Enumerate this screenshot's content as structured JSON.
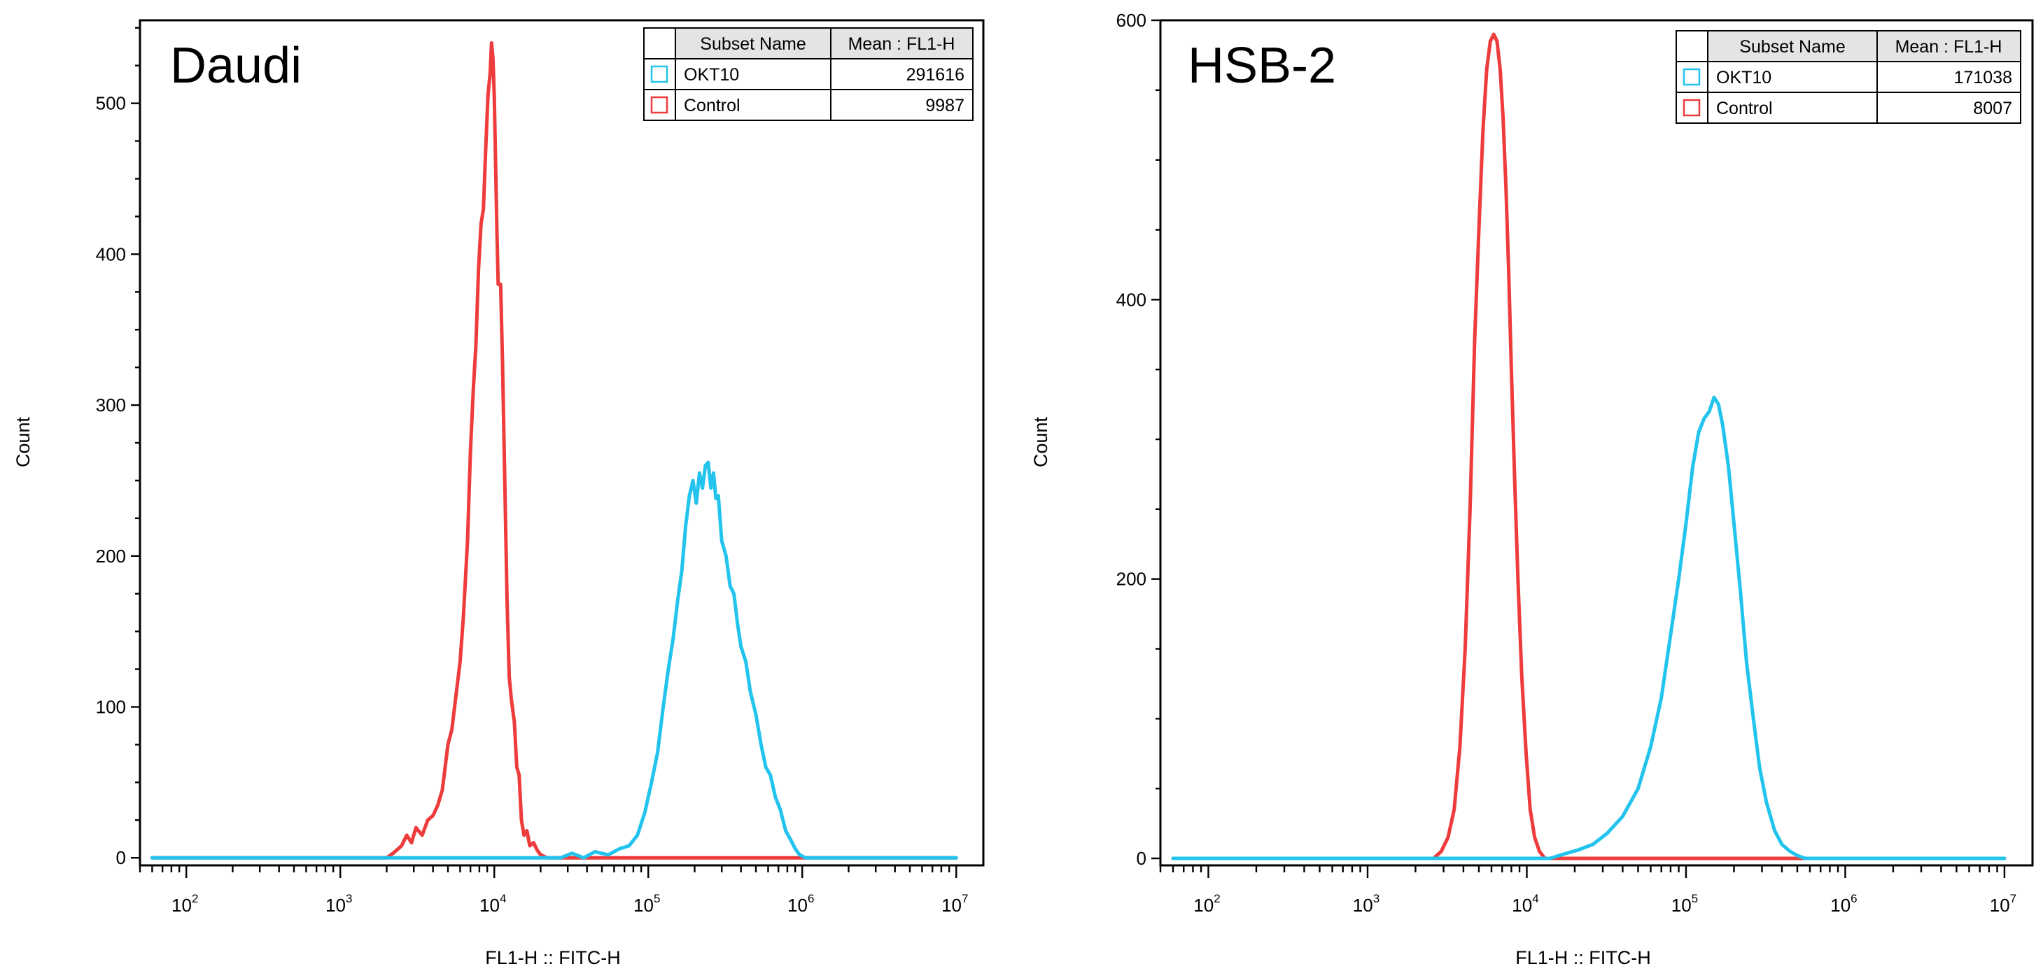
{
  "chart_data": [
    {
      "type": "line",
      "panel_title": "Daudi",
      "xlabel": "FL1-H :: FITC-H",
      "ylabel": "Count",
      "x_scale": "log",
      "xlim": [
        50,
        15000000
      ],
      "ylim": [
        -5,
        555
      ],
      "x_ticks": [
        100,
        1000,
        10000,
        100000,
        1000000,
        10000000
      ],
      "x_tick_labels": [
        [
          "10",
          "2"
        ],
        [
          "10",
          "3"
        ],
        [
          "10",
          "4"
        ],
        [
          "10",
          "5"
        ],
        [
          "10",
          "6"
        ],
        [
          "10",
          "7"
        ]
      ],
      "y_ticks": [
        0,
        100,
        200,
        300,
        400,
        500
      ],
      "y_tick_labels": [
        "0",
        "100",
        "200",
        "300",
        "400",
        "500"
      ],
      "legend": {
        "headers": [
          "Subset Name",
          "Mean : FL1-H"
        ],
        "rows": [
          {
            "name": "OKT10",
            "mean": "291616",
            "color": "#22c4ee"
          },
          {
            "name": "Control",
            "mean": "9987",
            "color": "#ee3b3b"
          }
        ]
      },
      "series": [
        {
          "name": "Control",
          "color": "#ee3b3b",
          "points": [
            [
              60,
              0
            ],
            [
              2000,
              0
            ],
            [
              2200,
              3
            ],
            [
              2500,
              8
            ],
            [
              2700,
              15
            ],
            [
              2900,
              10
            ],
            [
              3100,
              20
            ],
            [
              3400,
              15
            ],
            [
              3700,
              25
            ],
            [
              4000,
              28
            ],
            [
              4300,
              35
            ],
            [
              4600,
              45
            ],
            [
              5000,
              75
            ],
            [
              5300,
              85
            ],
            [
              5600,
              105
            ],
            [
              6000,
              130
            ],
            [
              6300,
              160
            ],
            [
              6700,
              210
            ],
            [
              7000,
              270
            ],
            [
              7300,
              310
            ],
            [
              7600,
              340
            ],
            [
              7900,
              390
            ],
            [
              8200,
              420
            ],
            [
              8500,
              430
            ],
            [
              8800,
              470
            ],
            [
              9100,
              505
            ],
            [
              9400,
              520
            ],
            [
              9600,
              540
            ],
            [
              9800,
              530
            ],
            [
              10000,
              505
            ],
            [
              10200,
              460
            ],
            [
              10400,
              415
            ],
            [
              10600,
              380
            ],
            [
              11000,
              380
            ],
            [
              11300,
              330
            ],
            [
              11700,
              250
            ],
            [
              12100,
              170
            ],
            [
              12500,
              120
            ],
            [
              12900,
              105
            ],
            [
              13500,
              90
            ],
            [
              14000,
              60
            ],
            [
              14500,
              55
            ],
            [
              15000,
              25
            ],
            [
              15600,
              15
            ],
            [
              16300,
              18
            ],
            [
              17000,
              8
            ],
            [
              18000,
              10
            ],
            [
              19000,
              5
            ],
            [
              20000,
              2
            ],
            [
              22000,
              0
            ],
            [
              10000000,
              0
            ]
          ]
        },
        {
          "name": "OKT10",
          "color": "#22c4ee",
          "points": [
            [
              60,
              0
            ],
            [
              27000,
              0
            ],
            [
              32000,
              3
            ],
            [
              38000,
              0
            ],
            [
              45000,
              4
            ],
            [
              55000,
              2
            ],
            [
              65000,
              6
            ],
            [
              75000,
              8
            ],
            [
              85000,
              15
            ],
            [
              95000,
              30
            ],
            [
              105000,
              50
            ],
            [
              115000,
              70
            ],
            [
              125000,
              100
            ],
            [
              135000,
              125
            ],
            [
              145000,
              145
            ],
            [
              155000,
              170
            ],
            [
              165000,
              190
            ],
            [
              175000,
              220
            ],
            [
              185000,
              240
            ],
            [
              195000,
              250
            ],
            [
              205000,
              235
            ],
            [
              215000,
              255
            ],
            [
              225000,
              245
            ],
            [
              235000,
              260
            ],
            [
              245000,
              262
            ],
            [
              255000,
              245
            ],
            [
              265000,
              255
            ],
            [
              275000,
              238
            ],
            [
              285000,
              240
            ],
            [
              300000,
              210
            ],
            [
              320000,
              200
            ],
            [
              340000,
              180
            ],
            [
              360000,
              175
            ],
            [
              380000,
              155
            ],
            [
              400000,
              140
            ],
            [
              430000,
              130
            ],
            [
              460000,
              110
            ],
            [
              500000,
              95
            ],
            [
              540000,
              75
            ],
            [
              580000,
              60
            ],
            [
              620000,
              55
            ],
            [
              670000,
              40
            ],
            [
              720000,
              32
            ],
            [
              780000,
              18
            ],
            [
              840000,
              12
            ],
            [
              900000,
              6
            ],
            [
              960000,
              2
            ],
            [
              1050000,
              0
            ],
            [
              10000000,
              0
            ]
          ]
        }
      ]
    },
    {
      "type": "line",
      "panel_title": "HSB-2",
      "xlabel": "FL1-H :: FITC-H",
      "ylabel": "Count",
      "x_scale": "log",
      "xlim": [
        50,
        15000000
      ],
      "ylim": [
        -5,
        600
      ],
      "x_ticks": [
        100,
        1000,
        10000,
        100000,
        1000000,
        10000000
      ],
      "x_tick_labels": [
        [
          "10",
          "2"
        ],
        [
          "10",
          "3"
        ],
        [
          "10",
          "4"
        ],
        [
          "10",
          "5"
        ],
        [
          "10",
          "6"
        ],
        [
          "10",
          "7"
        ]
      ],
      "y_ticks": [
        0,
        200,
        400,
        600
      ],
      "y_tick_labels": [
        "0",
        "200",
        "400",
        "600"
      ],
      "legend": {
        "headers": [
          "Subset Name",
          "Mean : FL1-H"
        ],
        "rows": [
          {
            "name": "OKT10",
            "mean": "171038",
            "color": "#22c4ee"
          },
          {
            "name": "Control",
            "mean": "8007",
            "color": "#ee3b3b"
          }
        ]
      },
      "series": [
        {
          "name": "Control",
          "color": "#ee3b3b",
          "points": [
            [
              60,
              0
            ],
            [
              2600,
              0
            ],
            [
              2900,
              5
            ],
            [
              3200,
              15
            ],
            [
              3500,
              35
            ],
            [
              3800,
              80
            ],
            [
              4100,
              150
            ],
            [
              4400,
              250
            ],
            [
              4700,
              370
            ],
            [
              5000,
              450
            ],
            [
              5300,
              520
            ],
            [
              5600,
              565
            ],
            [
              5900,
              585
            ],
            [
              6200,
              590
            ],
            [
              6500,
              585
            ],
            [
              6800,
              565
            ],
            [
              7100,
              530
            ],
            [
              7400,
              480
            ],
            [
              7700,
              420
            ],
            [
              8000,
              350
            ],
            [
              8400,
              270
            ],
            [
              8800,
              200
            ],
            [
              9300,
              130
            ],
            [
              9900,
              75
            ],
            [
              10500,
              35
            ],
            [
              11200,
              15
            ],
            [
              12000,
              5
            ],
            [
              13000,
              0
            ],
            [
              10000000,
              0
            ]
          ]
        },
        {
          "name": "OKT10",
          "color": "#22c4ee",
          "points": [
            [
              60,
              0
            ],
            [
              14000,
              0
            ],
            [
              17000,
              3
            ],
            [
              21000,
              6
            ],
            [
              26000,
              10
            ],
            [
              32000,
              18
            ],
            [
              40000,
              30
            ],
            [
              50000,
              50
            ],
            [
              60000,
              80
            ],
            [
              70000,
              115
            ],
            [
              80000,
              160
            ],
            [
              90000,
              200
            ],
            [
              100000,
              240
            ],
            [
              110000,
              280
            ],
            [
              120000,
              305
            ],
            [
              130000,
              315
            ],
            [
              140000,
              320
            ],
            [
              150000,
              330
            ],
            [
              160000,
              325
            ],
            [
              170000,
              310
            ],
            [
              185000,
              280
            ],
            [
              200000,
              240
            ],
            [
              220000,
              190
            ],
            [
              240000,
              140
            ],
            [
              265000,
              100
            ],
            [
              290000,
              65
            ],
            [
              320000,
              40
            ],
            [
              360000,
              20
            ],
            [
              400000,
              10
            ],
            [
              450000,
              5
            ],
            [
              500000,
              2
            ],
            [
              560000,
              0
            ],
            [
              10000000,
              0
            ]
          ]
        }
      ]
    }
  ]
}
